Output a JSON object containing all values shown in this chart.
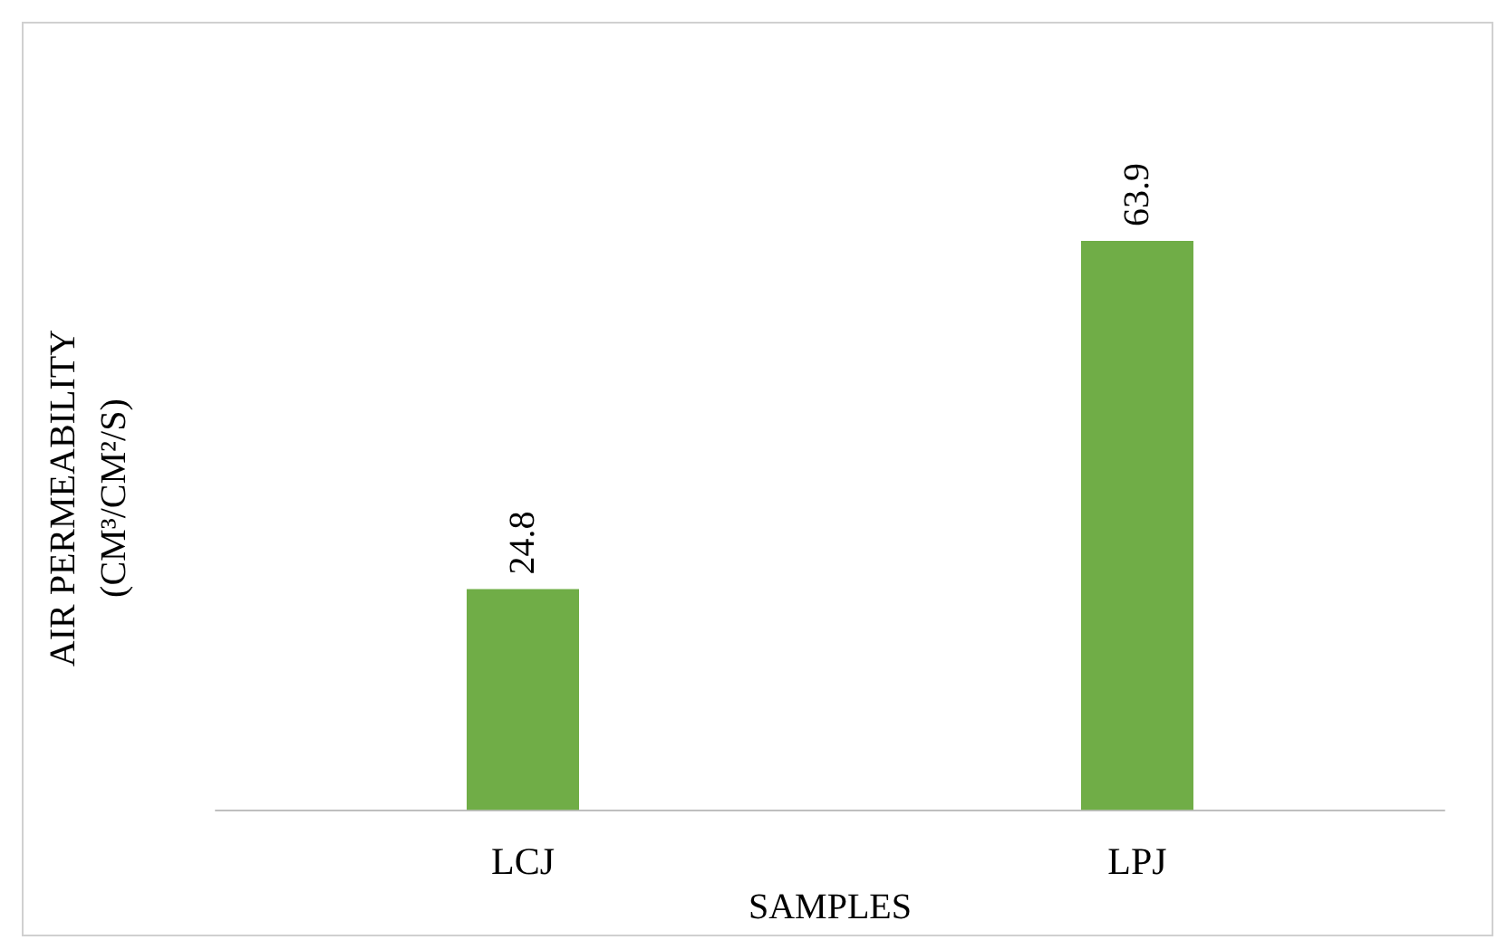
{
  "chart_data": {
    "type": "bar",
    "xlabel": "SAMPLES",
    "ylabel": "AIR PERMEABILITY\n(CM³/CM²/S)",
    "categories": [
      "LCJ",
      "LPJ"
    ],
    "values": [
      24.8,
      63.9
    ],
    "color": "#70ad47",
    "data_labels": true,
    "tick_labels": "x"
  }
}
